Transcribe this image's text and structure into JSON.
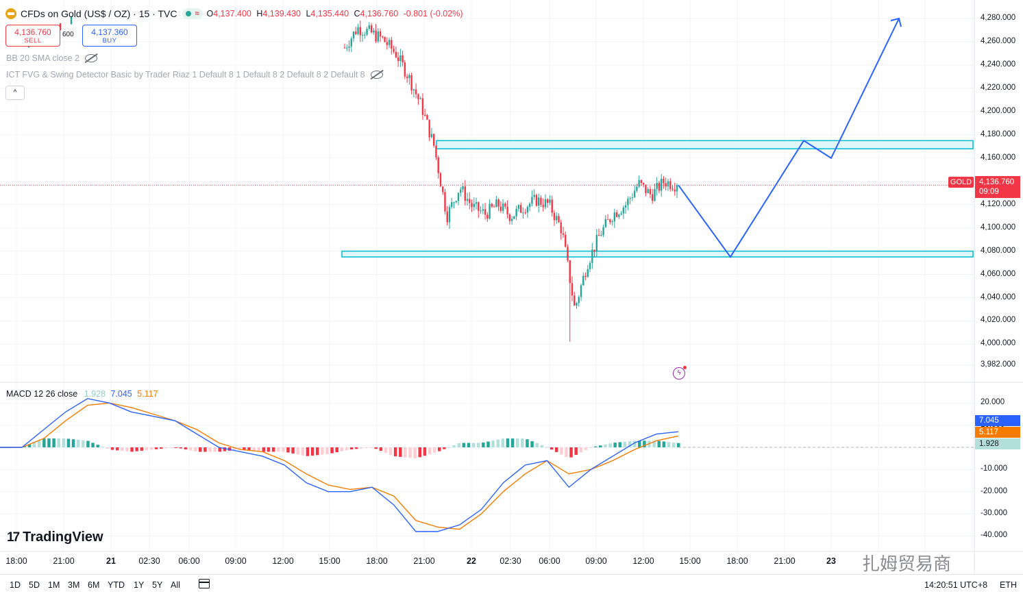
{
  "header": {
    "symbol": "CFDs on Gold (US$ / OZ) · 15 · TVC",
    "o_label": "O",
    "o": "4,137.400",
    "h_label": "H",
    "h": "4,139.430",
    "l_label": "L",
    "l": "4,135.440",
    "c_label": "C",
    "c": "4,136.760",
    "change": "-0.801 (-0.02%)"
  },
  "trade": {
    "sell_price": "4,136.760",
    "sell_label": "SELL",
    "spread": "600",
    "buy_price": "4,137.360",
    "buy_label": "BUY"
  },
  "indicators": {
    "bb": "BB 20 SMA close 2",
    "ict": "ICT FVG & Swing Detector Basic by Trader Riaz 1 Default 8 1 Default 8 2 Default 8 2 Default 8"
  },
  "macd_legend": {
    "title": "MACD 12 26 close",
    "hist": "1.928",
    "macd": "7.045",
    "signal": "5.117"
  },
  "price_axis": [
    "4,280.000",
    "4,260.000",
    "4,240.000",
    "4,220.000",
    "4,200.000",
    "4,180.000",
    "4,160.000",
    "4,140.000",
    "4,120.000",
    "4,100.000",
    "4,080.000",
    "4,060.000",
    "4,040.000",
    "4,020.000",
    "4,000.000",
    "3,982.000"
  ],
  "macd_axis": [
    "20.000",
    "10.000",
    "0.000",
    "-10.000",
    "-20.000",
    "-30.000",
    "-40.000"
  ],
  "current": {
    "tag": "GOLD",
    "price": "4,136.760",
    "countdown": "09:09"
  },
  "macd_tags": {
    "macd": "7.045",
    "signal": "5.117",
    "hist": "1.928"
  },
  "time_axis": [
    {
      "label": "18:00",
      "bold": false
    },
    {
      "label": "21:00",
      "bold": false
    },
    {
      "label": "21",
      "bold": true
    },
    {
      "label": "02:30",
      "bold": false
    },
    {
      "label": "06:00",
      "bold": false
    },
    {
      "label": "09:00",
      "bold": false
    },
    {
      "label": "12:00",
      "bold": false
    },
    {
      "label": "15:00",
      "bold": false
    },
    {
      "label": "18:00",
      "bold": false
    },
    {
      "label": "21:00",
      "bold": false
    },
    {
      "label": "22",
      "bold": true
    },
    {
      "label": "02:30",
      "bold": false
    },
    {
      "label": "06:00",
      "bold": false
    },
    {
      "label": "09:00",
      "bold": false
    },
    {
      "label": "12:00",
      "bold": false
    },
    {
      "label": "15:00",
      "bold": false
    },
    {
      "label": "18:00",
      "bold": false
    },
    {
      "label": "21:00",
      "bold": false
    },
    {
      "label": "23",
      "bold": true
    }
  ],
  "ranges": [
    "1D",
    "5D",
    "1M",
    "3M",
    "6M",
    "YTD",
    "1Y",
    "5Y",
    "All"
  ],
  "clock": "14:20:51 UTC+8",
  "session": "ETH",
  "brand": "TradingView",
  "watermark": "扎姆贸易商",
  "colors": {
    "up": "#26a69a",
    "down": "#f23645",
    "macd": "#2962ff",
    "signal": "#f57c00",
    "zone": "#00bcd4",
    "projection": "#2962ff"
  },
  "chart_data": [
    {
      "type": "candlestick",
      "title": "CFDs on Gold (US$ / OZ) · 15 · TVC",
      "ylim": [
        3982,
        4290
      ],
      "close_path": [
        [
          "15:15",
          4255
        ],
        [
          "16:00",
          4272
        ],
        [
          "17:00",
          4268
        ],
        [
          "18:00",
          4262
        ],
        [
          "19:00",
          4250
        ],
        [
          "20:00",
          4230
        ],
        [
          "21:00",
          4205
        ],
        [
          "21:45",
          4170
        ],
        [
          "22:15",
          4110
        ],
        [
          "22 00:00",
          4135
        ],
        [
          "01:00",
          4118
        ],
        [
          "02:00",
          4112
        ],
        [
          "03:00",
          4120
        ],
        [
          "04:00",
          4110
        ],
        [
          "05:00",
          4118
        ],
        [
          "06:00",
          4124
        ],
        [
          "07:00",
          4120
        ],
        [
          "07:45",
          4098
        ],
        [
          "08:05",
          4030
        ],
        [
          "08:30",
          4070
        ],
        [
          "09:00",
          4095
        ],
        [
          "10:00",
          4112
        ],
        [
          "11:00",
          4120
        ],
        [
          "11:30",
          4138
        ],
        [
          "12:30",
          4128
        ],
        [
          "13:30",
          4140
        ],
        [
          "14:15",
          4136.76
        ]
      ],
      "extremes": {
        "session_low": 4002
      },
      "zones": [
        {
          "label": "resistance",
          "from": 4168,
          "to": 4175
        },
        {
          "label": "support",
          "from": 4075,
          "to": 4080
        }
      ],
      "projection": [
        4136.76,
        4075,
        4175,
        4160,
        4280
      ],
      "current_price": 4136.76
    },
    {
      "type": "macd",
      "title": "MACD 12 26 close",
      "ylim": [
        -44,
        24
      ],
      "macd": [
        0,
        0,
        8,
        16,
        22,
        20,
        16,
        14,
        12,
        6,
        0,
        -2,
        -4,
        -8,
        -16,
        -20,
        -20,
        -18,
        -26,
        -38,
        -38,
        -35,
        -28,
        -16,
        -8,
        -6,
        -18,
        -10,
        -4,
        2,
        6,
        7.045
      ],
      "signal": [
        0,
        0,
        4,
        12,
        19,
        20,
        18,
        15,
        12,
        8,
        2,
        -1,
        -2,
        -6,
        -12,
        -17,
        -19,
        -18,
        -22,
        -33,
        -36,
        -37,
        -30,
        -20,
        -12,
        -6,
        -12,
        -10,
        -6,
        -1,
        3,
        5.117
      ],
      "histogram": [
        0,
        0,
        4,
        4,
        3,
        -1,
        -2,
        -1,
        0,
        -2,
        -2,
        -1,
        -2,
        -2,
        -4,
        -3,
        -1,
        0,
        -4,
        -5,
        -2,
        2,
        2,
        4,
        4,
        0,
        -5,
        0,
        2,
        3,
        3,
        1.928
      ]
    }
  ]
}
